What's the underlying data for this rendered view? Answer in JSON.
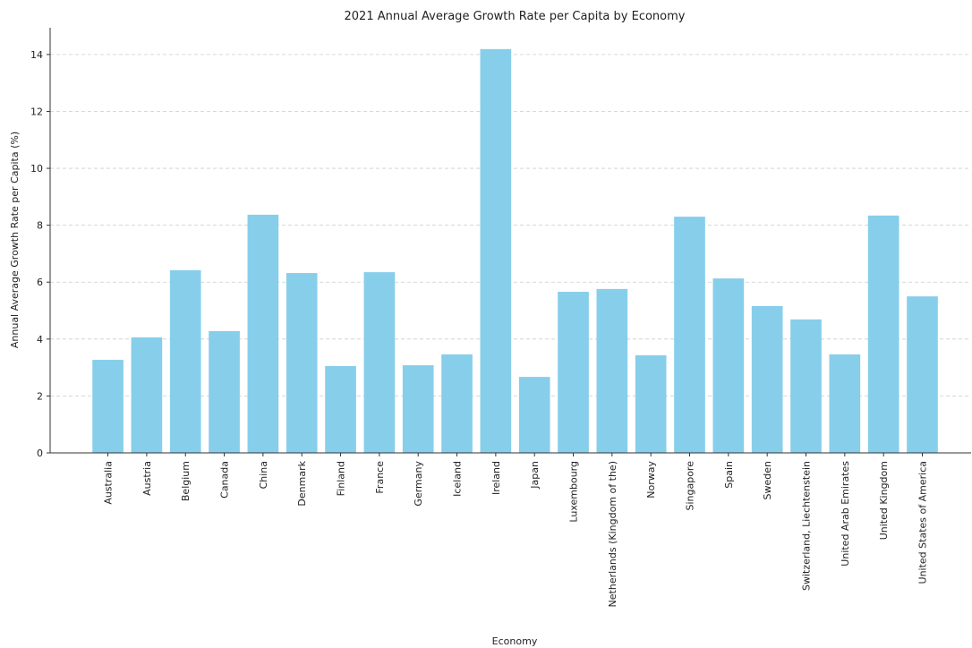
{
  "chart_data": {
    "type": "bar",
    "title": "2021 Annual Average Growth Rate per Capita by Economy",
    "x_label": "Economy",
    "y_label": "Annual Average Growth Rate per Capita (%)",
    "categories": [
      "Australia",
      "Austria",
      "Belgium",
      "Canada",
      "China",
      "Denmark",
      "Finland",
      "France",
      "Germany",
      "Iceland",
      "Ireland",
      "Japan",
      "Luxembourg",
      "Netherlands (Kingdom of the)",
      "Norway",
      "Singapore",
      "Spain",
      "Sweden",
      "Switzerland, Liechtenstein",
      "United Arab Emirates",
      "United Kingdom",
      "United States of America"
    ],
    "values": [
      3.27,
      4.06,
      6.42,
      4.28,
      8.37,
      6.32,
      3.05,
      6.35,
      3.08,
      3.46,
      14.19,
      2.67,
      5.66,
      5.76,
      3.43,
      8.3,
      6.13,
      5.16,
      4.69,
      3.46,
      8.34,
      5.5
    ],
    "color": "#87ceeb",
    "ylim": [
      0,
      14.94
    ],
    "yticks": [
      0,
      2,
      4,
      6,
      8,
      10,
      12,
      14
    ],
    "grid": true
  }
}
